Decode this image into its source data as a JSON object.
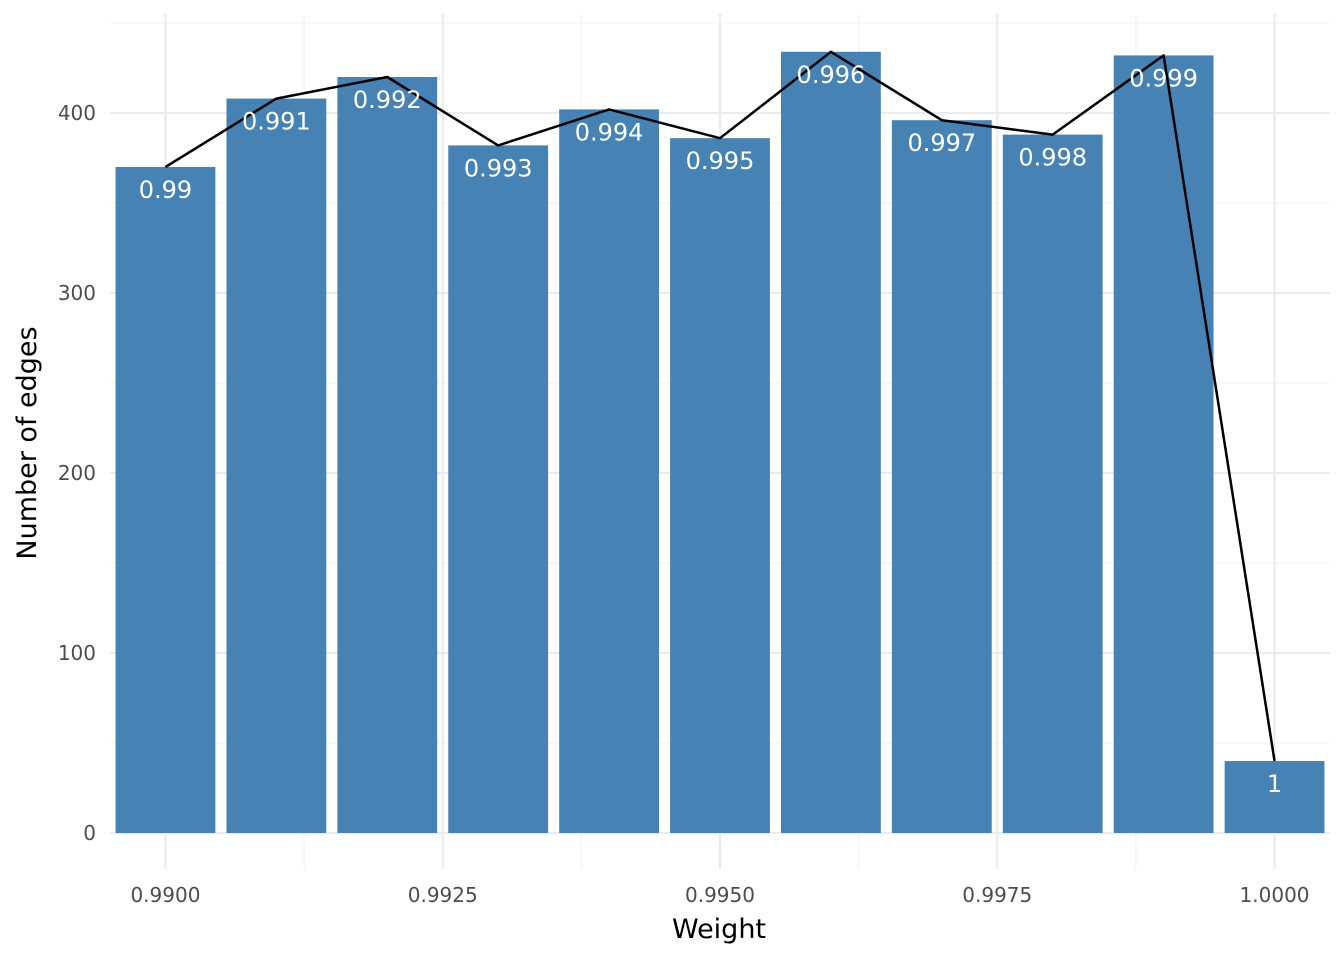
{
  "chart_data": {
    "type": "bar",
    "overlay": "line",
    "title": "",
    "xlabel": "Weight",
    "ylabel": "Number of edges",
    "x": [
      0.99,
      0.991,
      0.992,
      0.993,
      0.994,
      0.995,
      0.996,
      0.997,
      0.998,
      0.999,
      1.0
    ],
    "values": [
      370,
      408,
      420,
      382,
      402,
      386,
      434,
      396,
      388,
      432,
      40
    ],
    "bar_labels": [
      "0.99",
      "0.991",
      "0.992",
      "0.993",
      "0.994",
      "0.995",
      "0.996",
      "0.997",
      "0.998",
      "0.999",
      "1"
    ],
    "x_ticks": [
      0.99,
      0.9925,
      0.995,
      0.9975,
      1.0
    ],
    "x_tick_labels": [
      "0.9900",
      "0.9925",
      "0.9950",
      "0.9975",
      "1.0000"
    ],
    "y_ticks": [
      0,
      100,
      200,
      300,
      400
    ],
    "y_tick_labels": [
      "0",
      "100",
      "200",
      "300",
      "400"
    ],
    "xlim": [
      0.9895,
      1.0005
    ],
    "ylim": [
      0,
      455
    ],
    "grid": true,
    "legend": "none",
    "colors": {
      "bar": "#4682b4",
      "line": "#000000",
      "bar_label": "#ffffff"
    }
  }
}
